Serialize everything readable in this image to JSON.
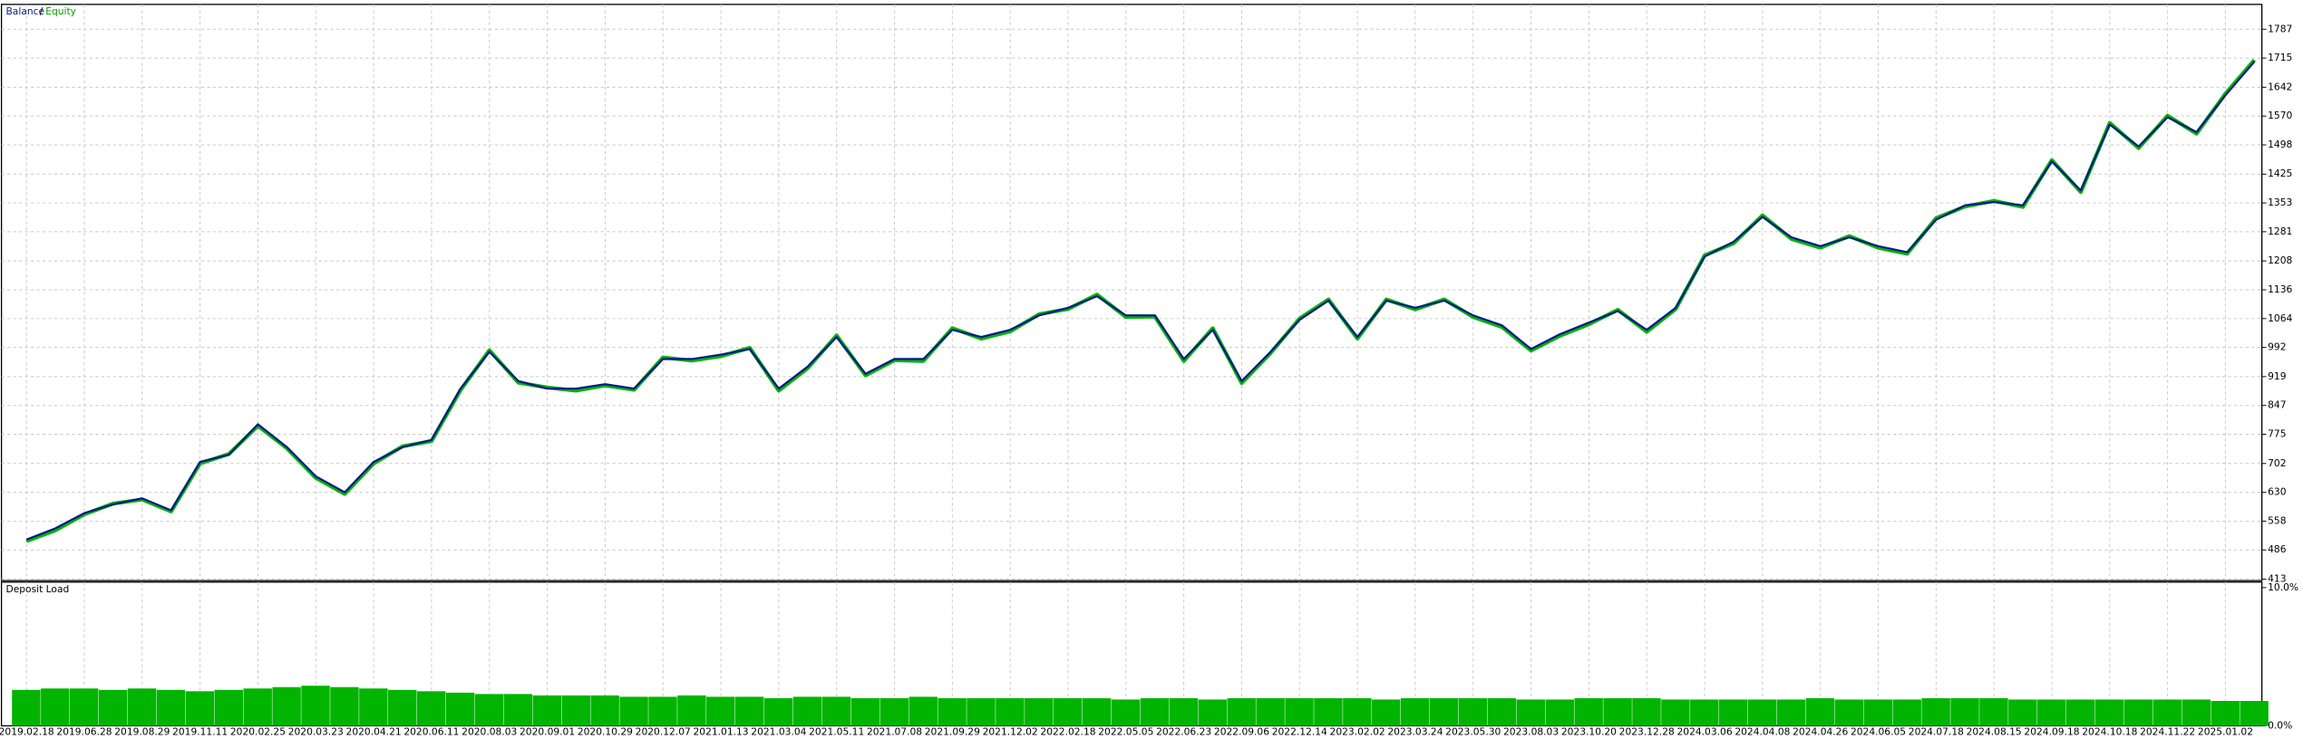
{
  "chart_data": [
    {
      "type": "line",
      "legend_separator": "/",
      "categories": [
        "2019.02.18",
        null,
        "2019.06.28",
        null,
        "2019.08.29",
        null,
        "2019.11.11",
        null,
        "2020.02.25",
        null,
        "2020.03.23",
        null,
        "2020.04.21",
        null,
        "2020.06.11",
        null,
        "2020.08.03",
        null,
        "2020.09.01",
        null,
        "2020.10.29",
        null,
        "2020.12.07",
        null,
        "2021.01.13",
        null,
        "2021.03.04",
        null,
        "2021.05.11",
        null,
        "2021.07.08",
        null,
        "2021.09.29",
        null,
        "2021.12.02",
        null,
        "2022.02.18",
        null,
        "2022.05.05",
        null,
        "2022.06.23",
        null,
        "2022.09.06",
        null,
        "2022.12.14",
        null,
        "2023.02.02",
        null,
        "2023.03.24",
        null,
        "2023.05.30",
        null,
        "2023.08.03",
        null,
        "2023.10.20",
        null,
        "2023.12.28",
        null,
        "2024.03.06",
        null,
        "2024.04.08",
        null,
        "2024.04.26",
        null,
        "2024.06.05",
        null,
        "2024.07.18",
        null,
        "2024.08.15",
        null,
        "2024.09.18",
        null,
        "2024.10.18",
        null,
        "2024.11.22",
        null,
        "2025.01.02",
        null
      ],
      "series": [
        {
          "name": "Balance",
          "color": "#0a1a8c",
          "values": [
            512,
            540,
            578,
            600,
            615,
            585,
            706,
            724,
            800,
            743,
            670,
            630,
            706,
            743,
            761,
            889,
            981,
            908,
            889,
            889,
            900,
            889,
            963,
            963,
            974,
            988,
            889,
            944,
            1018,
            926,
            963,
            963,
            1036,
            1018,
            1036,
            1072,
            1091,
            1120,
            1072,
            1072,
            963,
            1036,
            908,
            981,
            1061,
            1109,
            1018,
            1109,
            1091,
            1109,
            1072,
            1047,
            988,
            1025,
            1054,
            1083,
            1036,
            1091,
            1219,
            1256,
            1318,
            1267,
            1245,
            1267,
            1245,
            1230,
            1311,
            1347,
            1355,
            1347,
            1457,
            1384,
            1549,
            1494,
            1567,
            1530,
            1622,
            1706
          ]
        },
        {
          "name": "Equity",
          "color": "#00b400",
          "values": [
            508,
            535,
            575,
            602,
            612,
            582,
            702,
            726,
            796,
            740,
            666,
            626,
            702,
            745,
            758,
            885,
            985,
            904,
            892,
            884,
            897,
            886,
            967,
            959,
            970,
            991,
            884,
            940,
            1022,
            922,
            960,
            958,
            1040,
            1014,
            1032,
            1075,
            1088,
            1124,
            1068,
            1069,
            958,
            1040,
            903,
            978,
            1064,
            1112,
            1014,
            1112,
            1087,
            1112,
            1068,
            1043,
            984,
            1021,
            1050,
            1086,
            1031,
            1088,
            1222,
            1252,
            1322,
            1263,
            1241,
            1270,
            1241,
            1226,
            1315,
            1344,
            1358,
            1343,
            1460,
            1380,
            1553,
            1490,
            1571,
            1526,
            1626,
            1710
          ]
        }
      ],
      "ylim": [
        413,
        1849
      ],
      "yticks": [
        413,
        486,
        558,
        630,
        702,
        775,
        847,
        919,
        992,
        1064,
        1136,
        1208,
        1281,
        1353,
        1425,
        1498,
        1570,
        1642,
        1715,
        1787
      ],
      "grid": true
    },
    {
      "type": "bar",
      "title": "Deposit Load",
      "color": "#00b400",
      "values": [
        2.6,
        2.7,
        2.7,
        2.6,
        2.7,
        2.6,
        2.5,
        2.6,
        2.7,
        2.8,
        2.9,
        2.8,
        2.7,
        2.6,
        2.5,
        2.4,
        2.3,
        2.3,
        2.2,
        2.2,
        2.2,
        2.1,
        2.1,
        2.2,
        2.1,
        2.1,
        2.0,
        2.1,
        2.1,
        2.0,
        2.0,
        2.1,
        2.0,
        2.0,
        2.0,
        2.0,
        2.0,
        2.0,
        1.9,
        2.0,
        2.0,
        1.9,
        2.0,
        2.0,
        2.0,
        2.0,
        2.0,
        1.9,
        2.0,
        2.0,
        2.0,
        2.0,
        1.9,
        1.9,
        2.0,
        2.0,
        2.0,
        1.9,
        1.9,
        1.9,
        1.9,
        1.9,
        2.0,
        1.9,
        1.9,
        1.9,
        2.0,
        2.0,
        2.0,
        1.9,
        1.9,
        1.9,
        1.9,
        1.9,
        1.9,
        1.9,
        1.8,
        1.8
      ],
      "ylim": [
        0,
        10.4
      ],
      "yticks": [
        {
          "value": 10,
          "label": "10.0%"
        },
        {
          "value": 0,
          "label": "0.0%"
        }
      ],
      "grid": true
    }
  ]
}
